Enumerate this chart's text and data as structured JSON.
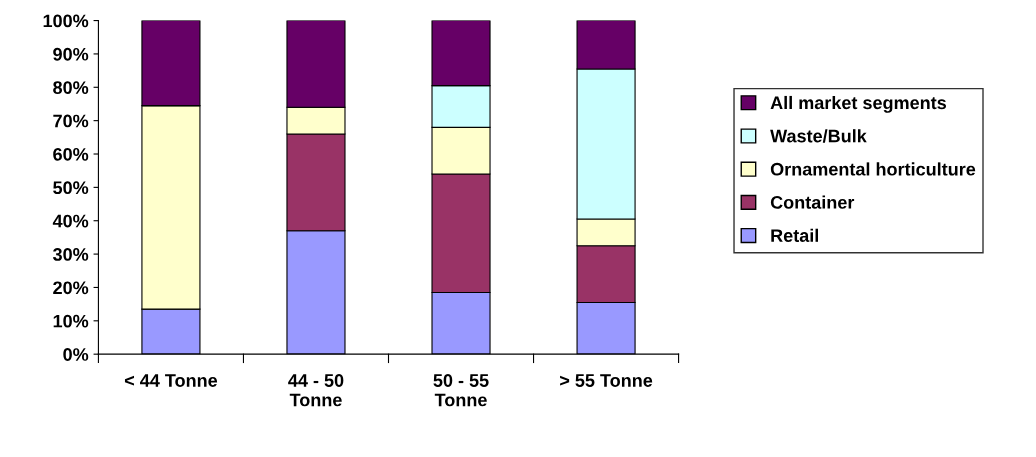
{
  "chart_data": {
    "type": "bar",
    "stacked": true,
    "categories": [
      "< 44 Tonne",
      "44 - 50 Tonne",
      "50 - 55 Tonne",
      "> 55 Tonne"
    ],
    "series": [
      {
        "name": "Retail",
        "color": "#9999ff",
        "values": [
          13.5,
          37,
          18.5,
          15.5
        ]
      },
      {
        "name": "Container",
        "color": "#993366",
        "values": [
          0,
          29,
          35.5,
          17
        ]
      },
      {
        "name": "Ornamental horticulture",
        "color": "#ffffcc",
        "values": [
          61,
          8,
          14,
          8
        ]
      },
      {
        "name": "Waste/Bulk",
        "color": "#ccffff",
        "values": [
          0,
          0,
          12.5,
          45
        ]
      },
      {
        "name": "All market segments",
        "color": "#660066",
        "values": [
          25.5,
          26,
          19.5,
          14.5
        ]
      }
    ],
    "ylim": [
      0,
      100
    ],
    "yticks": [
      {
        "value": 0,
        "label": "0%"
      },
      {
        "value": 10,
        "label": "10%"
      },
      {
        "value": 20,
        "label": "20%"
      },
      {
        "value": 30,
        "label": "30%"
      },
      {
        "value": 40,
        "label": "40%"
      },
      {
        "value": 50,
        "label": "50%"
      },
      {
        "value": 60,
        "label": "60%"
      },
      {
        "value": 70,
        "label": "70%"
      },
      {
        "value": 80,
        "label": "80%"
      },
      {
        "value": 90,
        "label": "90%"
      },
      {
        "value": 100,
        "label": "100%"
      }
    ],
    "grid": false,
    "legend": "right"
  }
}
